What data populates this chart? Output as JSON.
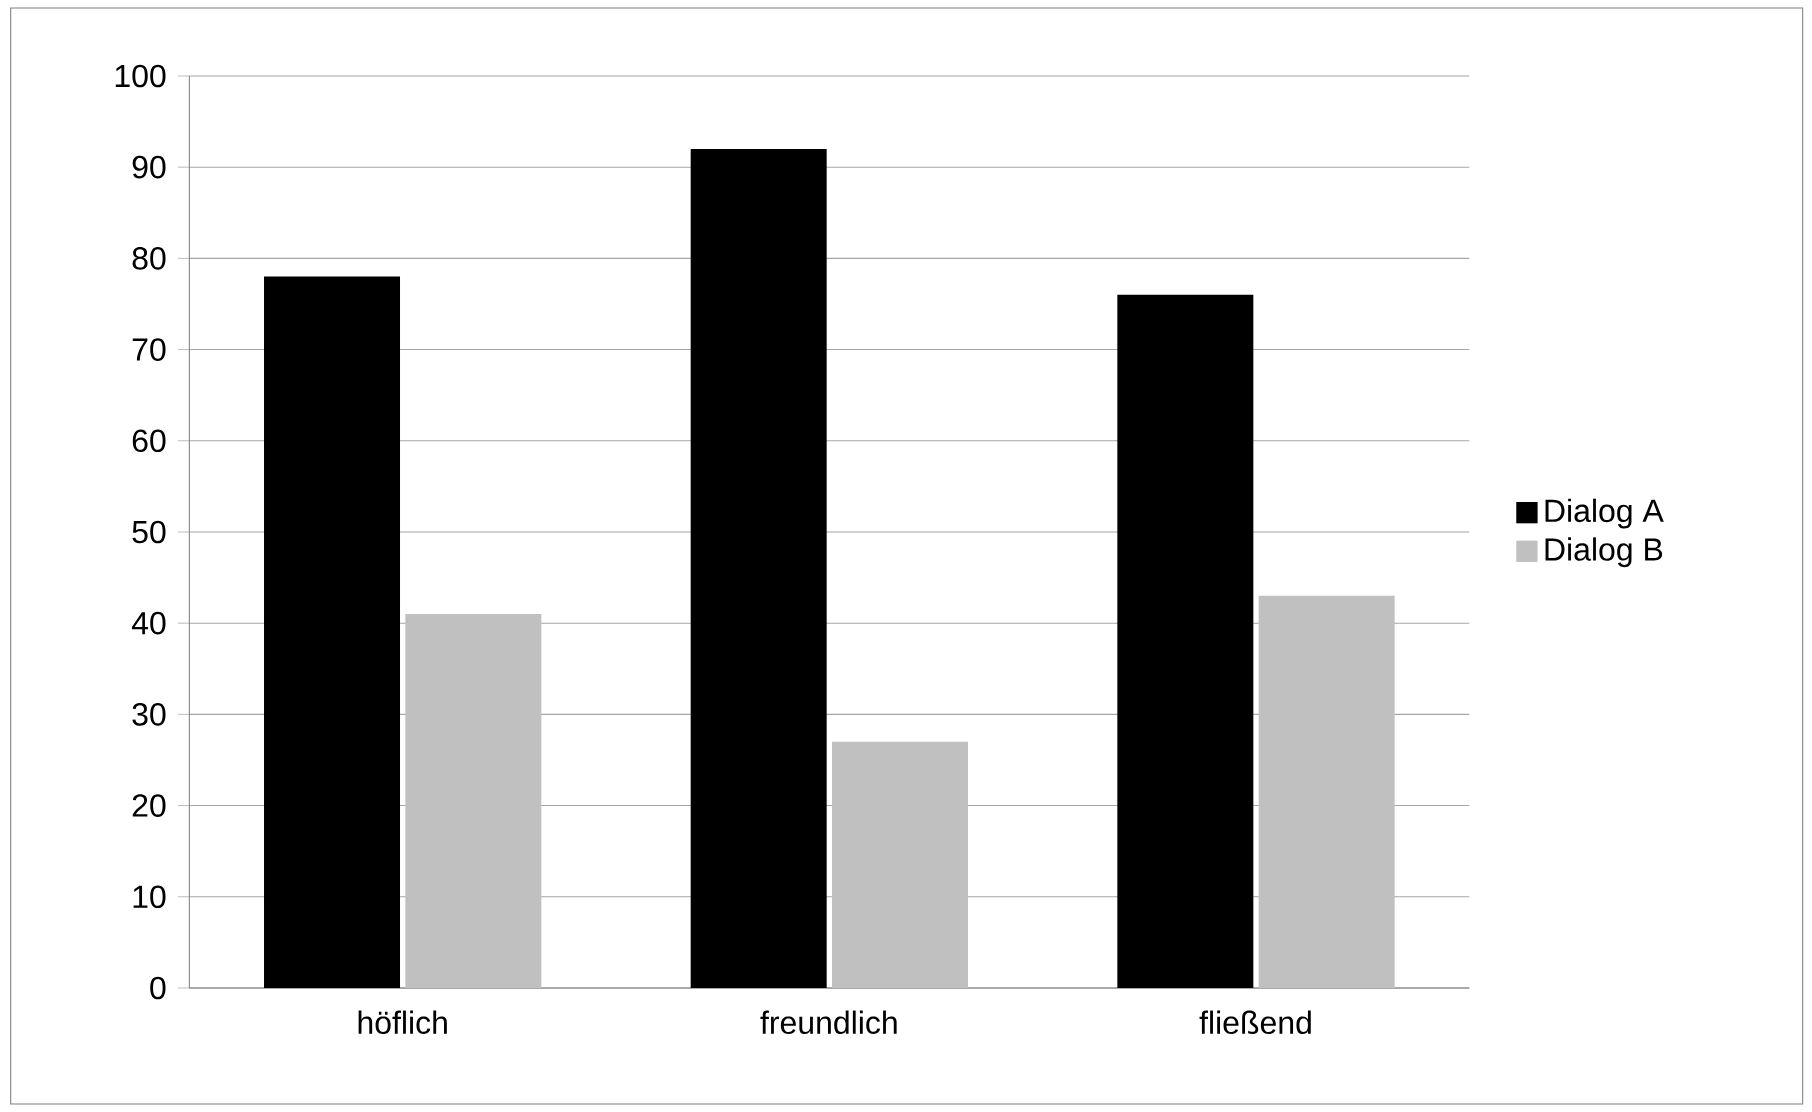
{
  "chart_data": {
    "type": "bar",
    "categories": [
      "höflich",
      "freundlich",
      "fließend"
    ],
    "series": [
      {
        "name": "Dialog A",
        "color": "#000000",
        "values": [
          78,
          92,
          76
        ]
      },
      {
        "name": "Dialog B",
        "color": "#c0c0c0",
        "values": [
          41,
          27,
          43
        ]
      }
    ],
    "ylim": [
      0,
      100
    ],
    "yticks": [
      0,
      10,
      20,
      30,
      40,
      50,
      60,
      70,
      80,
      90,
      100
    ],
    "grid": "y",
    "legend": "right"
  }
}
